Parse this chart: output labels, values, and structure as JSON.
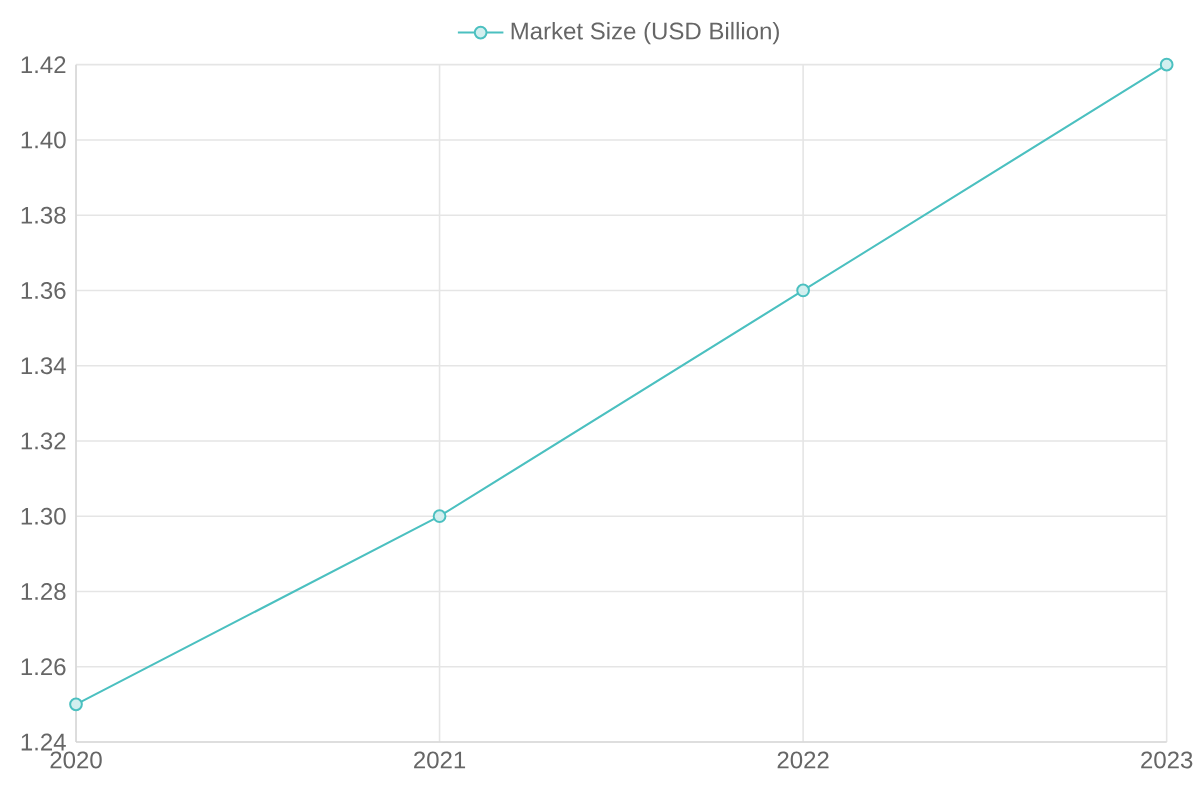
{
  "chart_data": {
    "type": "line",
    "categories": [
      "2020",
      "2021",
      "2022",
      "2023"
    ],
    "series": [
      {
        "name": "Market Size (USD Billion)",
        "color": "#4bc0c0",
        "values": [
          1.25,
          1.3,
          1.36,
          1.42
        ]
      }
    ],
    "ylim": [
      1.24,
      1.42
    ],
    "yticks": [
      1.24,
      1.26,
      1.28,
      {
        "value": 1.3,
        "label": "1.30"
      },
      1.32,
      1.34,
      1.36,
      1.38,
      {
        "value": 1.4,
        "label": "1.40"
      },
      1.42
    ],
    "grid": true,
    "legend": "top",
    "marker": "circle",
    "line_style": "solid"
  }
}
